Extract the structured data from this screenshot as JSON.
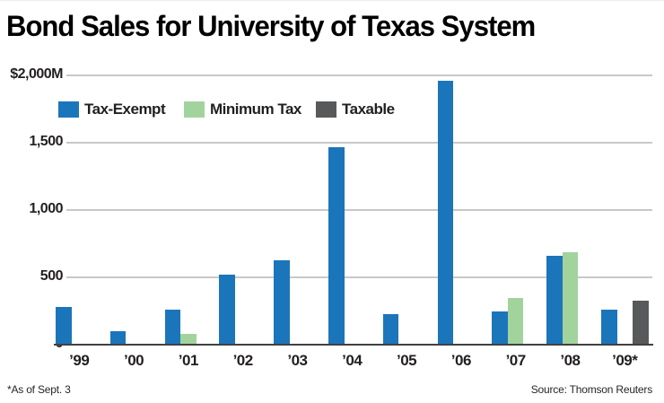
{
  "title": "Bond Sales for University of Texas System",
  "chart_data": {
    "type": "bar",
    "title": "Bond Sales for University of Texas System",
    "categories": [
      "’99",
      "’00",
      "’01",
      "’02",
      "’03",
      "’04",
      "’05",
      "’06",
      "’07",
      "’08",
      "’09*"
    ],
    "series": [
      {
        "name": "Tax-Exempt",
        "color": "#1b75bb",
        "values": [
          280,
          100,
          260,
          520,
          630,
          1470,
          230,
          1960,
          250,
          660,
          260
        ]
      },
      {
        "name": "Minimum Tax",
        "color": "#a3d39c",
        "values": [
          null,
          null,
          80,
          null,
          null,
          null,
          null,
          null,
          350,
          690,
          null
        ]
      },
      {
        "name": "Taxable",
        "color": "#58595b",
        "values": [
          null,
          null,
          null,
          null,
          null,
          null,
          null,
          null,
          null,
          null,
          330
        ]
      }
    ],
    "ylim": [
      0,
      2000
    ],
    "yticks": [
      {
        "value": 2000,
        "label": "$2,000M"
      },
      {
        "value": 1500,
        "label": "1,500"
      },
      {
        "value": 1000,
        "label": "1,000"
      },
      {
        "value": 500,
        "label": "500"
      },
      {
        "value": 0,
        "label": "0"
      }
    ],
    "grid": true,
    "legend_position": "top-left",
    "footnote": "*As of Sept. 3",
    "source": "Source: Thomson Reuters"
  }
}
